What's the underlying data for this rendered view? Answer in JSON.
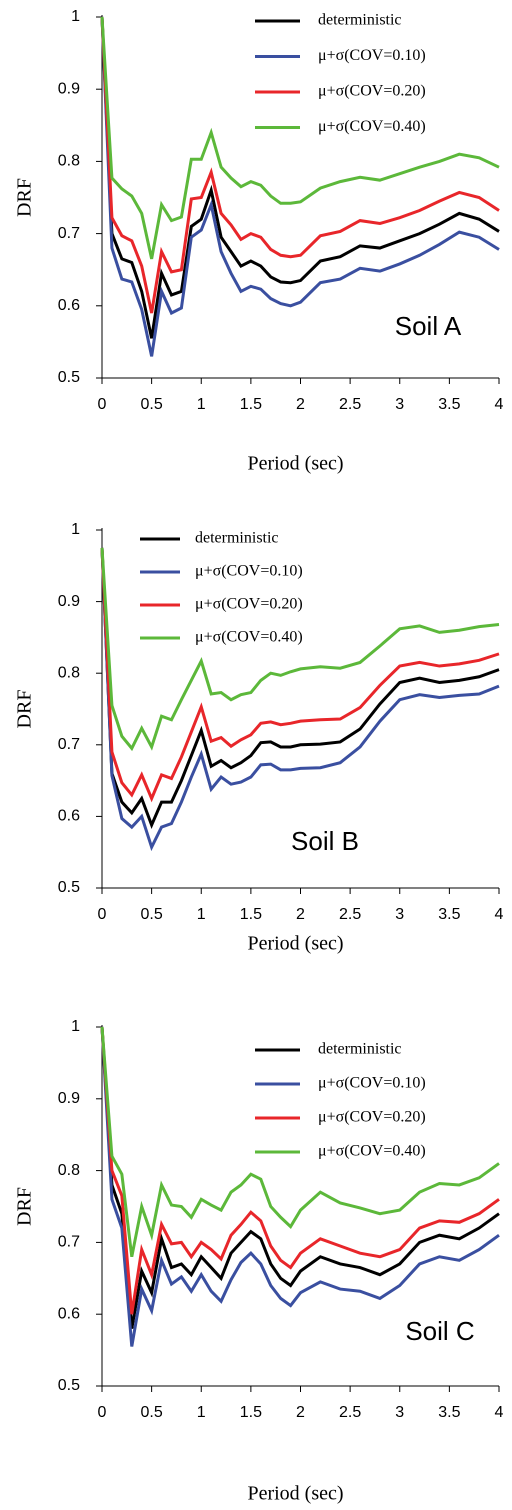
{
  "chart_data": [
    {
      "type": "line",
      "ylabel": "DRF",
      "xlabel": "Period (sec)",
      "annotation": "Soil A",
      "legend": "top-right",
      "xlim": [
        0,
        4
      ],
      "xticks": [
        0,
        0.5,
        1,
        1.5,
        2,
        2.5,
        3,
        3.5,
        4
      ],
      "ylim": [
        0.5,
        1
      ],
      "yticks": [
        0.5,
        0.6,
        0.7,
        0.8,
        0.9,
        1
      ],
      "x": [
        0,
        0.1,
        0.2,
        0.3,
        0.4,
        0.5,
        0.6,
        0.7,
        0.8,
        0.9,
        1.0,
        1.1,
        1.2,
        1.3,
        1.4,
        1.5,
        1.6,
        1.7,
        1.8,
        1.9,
        2.0,
        2.2,
        2.4,
        2.6,
        2.8,
        3.0,
        3.2,
        3.4,
        3.6,
        3.8,
        4.0
      ],
      "series": [
        {
          "name": "deterministic",
          "color": "#000000",
          "values": [
            1.0,
            0.7,
            0.665,
            0.66,
            0.62,
            0.555,
            0.645,
            0.615,
            0.62,
            0.71,
            0.72,
            0.76,
            0.695,
            0.675,
            0.655,
            0.662,
            0.655,
            0.64,
            0.633,
            0.632,
            0.635,
            0.662,
            0.668,
            0.683,
            0.68,
            0.69,
            0.7,
            0.713,
            0.728,
            0.72,
            0.703
          ]
        },
        {
          "name": "μ+σ(COV=0.10)",
          "color": "#3a4fa0",
          "values": [
            1.0,
            0.68,
            0.637,
            0.633,
            0.595,
            0.53,
            0.62,
            0.59,
            0.597,
            0.695,
            0.705,
            0.74,
            0.675,
            0.645,
            0.62,
            0.627,
            0.623,
            0.61,
            0.603,
            0.6,
            0.605,
            0.632,
            0.637,
            0.652,
            0.648,
            0.658,
            0.67,
            0.685,
            0.702,
            0.695,
            0.678
          ]
        },
        {
          "name": "μ+σ(COV=0.20)",
          "color": "#e8262a",
          "values": [
            1.0,
            0.722,
            0.697,
            0.69,
            0.655,
            0.59,
            0.675,
            0.647,
            0.65,
            0.748,
            0.75,
            0.785,
            0.728,
            0.712,
            0.692,
            0.7,
            0.695,
            0.678,
            0.67,
            0.668,
            0.67,
            0.697,
            0.703,
            0.718,
            0.714,
            0.722,
            0.732,
            0.745,
            0.757,
            0.75,
            0.732
          ]
        },
        {
          "name": "μ+σ(COV=0.40)",
          "color": "#5cb83a",
          "values": [
            1.0,
            0.777,
            0.762,
            0.752,
            0.728,
            0.665,
            0.74,
            0.718,
            0.723,
            0.803,
            0.803,
            0.84,
            0.792,
            0.777,
            0.765,
            0.772,
            0.767,
            0.752,
            0.742,
            0.742,
            0.744,
            0.763,
            0.772,
            0.778,
            0.774,
            0.783,
            0.792,
            0.8,
            0.81,
            0.805,
            0.792
          ]
        }
      ]
    },
    {
      "type": "line",
      "ylabel": "DRF",
      "xlabel": "Period (sec)",
      "annotation": "Soil B",
      "legend": "top-left",
      "xlim": [
        0,
        4
      ],
      "xticks": [
        0,
        0.5,
        1,
        1.5,
        2,
        2.5,
        3,
        3.5,
        4
      ],
      "ylim": [
        0.5,
        1
      ],
      "yticks": [
        0.5,
        0.6,
        0.7,
        0.8,
        0.9,
        1
      ],
      "x": [
        0,
        0.1,
        0.2,
        0.3,
        0.4,
        0.5,
        0.6,
        0.7,
        0.8,
        0.9,
        1.0,
        1.1,
        1.2,
        1.3,
        1.4,
        1.5,
        1.6,
        1.7,
        1.8,
        1.9,
        2.0,
        2.2,
        2.4,
        2.6,
        2.8,
        3.0,
        3.2,
        3.4,
        3.6,
        3.8,
        4.0
      ],
      "series": [
        {
          "name": "deterministic",
          "color": "#000000",
          "values": [
            0.975,
            0.66,
            0.62,
            0.605,
            0.625,
            0.588,
            0.62,
            0.62,
            0.65,
            0.685,
            0.72,
            0.67,
            0.678,
            0.668,
            0.675,
            0.685,
            0.703,
            0.704,
            0.697,
            0.697,
            0.7,
            0.701,
            0.704,
            0.722,
            0.757,
            0.787,
            0.793,
            0.787,
            0.79,
            0.795,
            0.805
          ]
        },
        {
          "name": "μ+σ(COV=0.10)",
          "color": "#3a4fa0",
          "values": [
            0.975,
            0.657,
            0.597,
            0.585,
            0.6,
            0.557,
            0.585,
            0.59,
            0.62,
            0.655,
            0.687,
            0.638,
            0.655,
            0.645,
            0.648,
            0.655,
            0.672,
            0.673,
            0.665,
            0.665,
            0.667,
            0.668,
            0.675,
            0.697,
            0.733,
            0.763,
            0.77,
            0.766,
            0.769,
            0.771,
            0.782
          ]
        },
        {
          "name": "μ+σ(COV=0.20)",
          "color": "#e8262a",
          "values": [
            0.975,
            0.69,
            0.647,
            0.63,
            0.658,
            0.625,
            0.658,
            0.653,
            0.683,
            0.718,
            0.753,
            0.705,
            0.71,
            0.698,
            0.707,
            0.714,
            0.73,
            0.732,
            0.728,
            0.73,
            0.733,
            0.735,
            0.736,
            0.752,
            0.783,
            0.81,
            0.815,
            0.81,
            0.813,
            0.818,
            0.827
          ]
        },
        {
          "name": "μ+σ(COV=0.40)",
          "color": "#5cb83a",
          "values": [
            0.975,
            0.755,
            0.712,
            0.695,
            0.723,
            0.697,
            0.74,
            0.735,
            0.763,
            0.79,
            0.817,
            0.771,
            0.773,
            0.763,
            0.77,
            0.773,
            0.79,
            0.8,
            0.797,
            0.802,
            0.806,
            0.809,
            0.807,
            0.815,
            0.838,
            0.862,
            0.866,
            0.857,
            0.86,
            0.865,
            0.868
          ]
        }
      ]
    },
    {
      "type": "line",
      "ylabel": "DRF",
      "xlabel": "Period (sec)",
      "annotation": "Soil C",
      "legend": "top-right",
      "xlim": [
        0,
        4
      ],
      "xticks": [
        0,
        0.5,
        1,
        1.5,
        2,
        2.5,
        3,
        3.5,
        4
      ],
      "ylim": [
        0.5,
        1
      ],
      "yticks": [
        0.5,
        0.6,
        0.7,
        0.8,
        0.9,
        1
      ],
      "x": [
        0,
        0.1,
        0.2,
        0.3,
        0.4,
        0.5,
        0.6,
        0.7,
        0.8,
        0.9,
        1.0,
        1.1,
        1.2,
        1.3,
        1.4,
        1.5,
        1.6,
        1.7,
        1.8,
        1.9,
        2.0,
        2.2,
        2.4,
        2.6,
        2.8,
        3.0,
        3.2,
        3.4,
        3.6,
        3.8,
        4.0
      ],
      "series": [
        {
          "name": "deterministic",
          "color": "#000000",
          "values": [
            1.0,
            0.78,
            0.74,
            0.58,
            0.66,
            0.63,
            0.705,
            0.665,
            0.67,
            0.655,
            0.68,
            0.665,
            0.65,
            0.685,
            0.7,
            0.715,
            0.705,
            0.67,
            0.65,
            0.64,
            0.66,
            0.68,
            0.67,
            0.665,
            0.655,
            0.67,
            0.7,
            0.71,
            0.705,
            0.72,
            0.74
          ]
        },
        {
          "name": "μ+σ(COV=0.10)",
          "color": "#3a4fa0",
          "values": [
            1.0,
            0.76,
            0.72,
            0.555,
            0.635,
            0.605,
            0.675,
            0.642,
            0.652,
            0.632,
            0.655,
            0.632,
            0.618,
            0.648,
            0.672,
            0.685,
            0.67,
            0.64,
            0.622,
            0.612,
            0.63,
            0.645,
            0.635,
            0.632,
            0.622,
            0.64,
            0.67,
            0.68,
            0.675,
            0.69,
            0.71
          ]
        },
        {
          "name": "μ+σ(COV=0.20)",
          "color": "#e8262a",
          "values": [
            1.0,
            0.8,
            0.765,
            0.6,
            0.69,
            0.655,
            0.725,
            0.698,
            0.7,
            0.68,
            0.7,
            0.69,
            0.677,
            0.71,
            0.725,
            0.742,
            0.73,
            0.695,
            0.675,
            0.665,
            0.685,
            0.705,
            0.695,
            0.685,
            0.68,
            0.69,
            0.72,
            0.73,
            0.728,
            0.74,
            0.76
          ]
        },
        {
          "name": "μ+σ(COV=0.40)",
          "color": "#5cb83a",
          "values": [
            1.0,
            0.82,
            0.795,
            0.68,
            0.75,
            0.71,
            0.78,
            0.752,
            0.75,
            0.735,
            0.76,
            0.752,
            0.745,
            0.77,
            0.78,
            0.795,
            0.788,
            0.75,
            0.735,
            0.722,
            0.745,
            0.77,
            0.755,
            0.748,
            0.74,
            0.745,
            0.77,
            0.782,
            0.78,
            0.79,
            0.81
          ]
        }
      ]
    }
  ]
}
